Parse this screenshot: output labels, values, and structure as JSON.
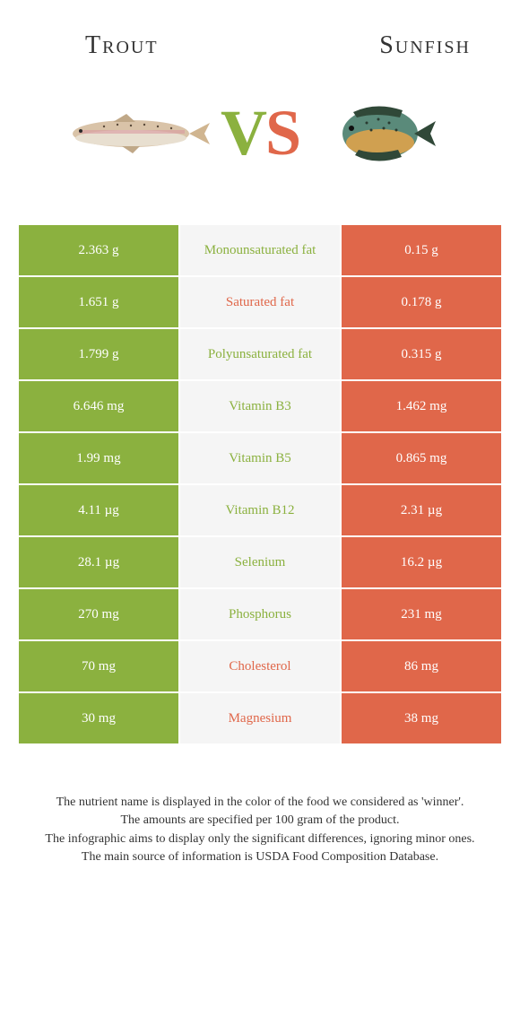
{
  "header": {
    "left_title": "Trout",
    "right_title": "Sunfish"
  },
  "vs": {
    "v": "V",
    "s": "S"
  },
  "colors": {
    "left": "#8bb13f",
    "right": "#e0674a",
    "mid_bg": "#f5f5f5",
    "text": "#333333"
  },
  "fish": {
    "left": {
      "body_fill": "#d9c3a8",
      "belly_fill": "#e8dfd0",
      "stripe": "#d89aa0",
      "spot": "#5a4a3a"
    },
    "right": {
      "body_fill": "#5a8a7a",
      "belly_fill": "#d0a050",
      "fin": "#304838",
      "spot": "#2a3a30"
    }
  },
  "rows": [
    {
      "left": "2.363 g",
      "label": "Monounsaturated fat",
      "right": "0.15 g",
      "winner": "left"
    },
    {
      "left": "1.651 g",
      "label": "Saturated fat",
      "right": "0.178 g",
      "winner": "right"
    },
    {
      "left": "1.799 g",
      "label": "Polyunsaturated fat",
      "right": "0.315 g",
      "winner": "left"
    },
    {
      "left": "6.646 mg",
      "label": "Vitamin B3",
      "right": "1.462 mg",
      "winner": "left"
    },
    {
      "left": "1.99 mg",
      "label": "Vitamin B5",
      "right": "0.865 mg",
      "winner": "left"
    },
    {
      "left": "4.11 µg",
      "label": "Vitamin B12",
      "right": "2.31 µg",
      "winner": "left"
    },
    {
      "left": "28.1 µg",
      "label": "Selenium",
      "right": "16.2 µg",
      "winner": "left"
    },
    {
      "left": "270 mg",
      "label": "Phosphorus",
      "right": "231 mg",
      "winner": "left"
    },
    {
      "left": "70 mg",
      "label": "Cholesterol",
      "right": "86 mg",
      "winner": "right"
    },
    {
      "left": "30 mg",
      "label": "Magnesium",
      "right": "38 mg",
      "winner": "right"
    }
  ],
  "footer": {
    "line1": "The nutrient name is displayed in the color of the food we considered as 'winner'.",
    "line2": "The amounts are specified per 100 gram of the product.",
    "line3": "The infographic aims to display only the significant differences, ignoring minor ones.",
    "line4": "The main source of information is USDA Food Composition Database."
  }
}
